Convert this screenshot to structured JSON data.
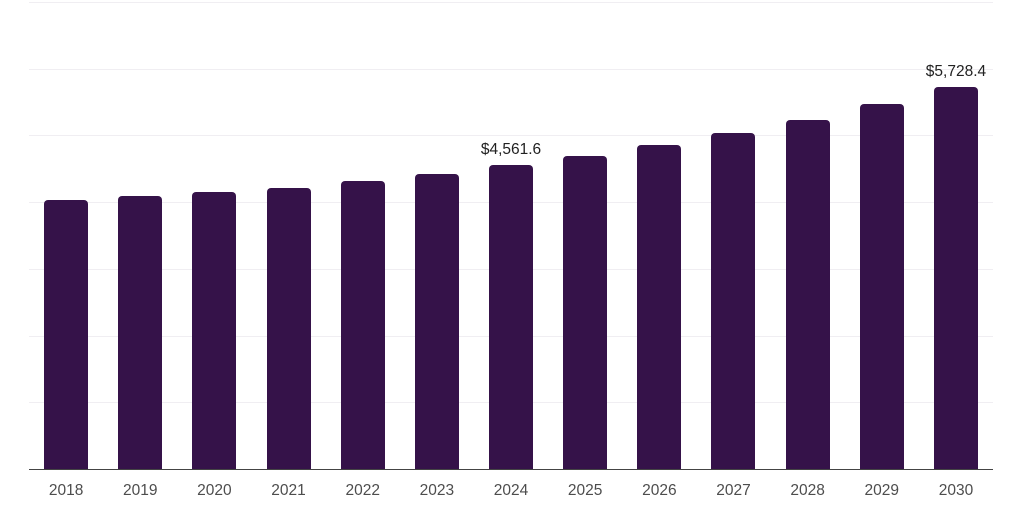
{
  "chart_data": {
    "type": "bar",
    "title": "",
    "xlabel": "",
    "ylabel": "",
    "categories": [
      "2018",
      "2019",
      "2020",
      "2021",
      "2022",
      "2023",
      "2024",
      "2025",
      "2026",
      "2027",
      "2028",
      "2029",
      "2030"
    ],
    "values": [
      4030,
      4090,
      4155,
      4210,
      4315,
      4425,
      4561.6,
      4695,
      4850,
      5035,
      5235,
      5465,
      5728.4
    ],
    "data_labels": {
      "2024": "$4,561.6",
      "2030": "$5,728.4"
    },
    "ylim": [
      0,
      7000
    ],
    "grid_interval": 1000,
    "grid": "horizontal-only",
    "legend": "none",
    "y_tick_labels": "none",
    "colors": {
      "bar": "#351249",
      "grid": "#f0eef2",
      "axis": "#444444",
      "tick_label": "#4d4d4d",
      "data_label": "#222222",
      "background": "#ffffff"
    }
  }
}
